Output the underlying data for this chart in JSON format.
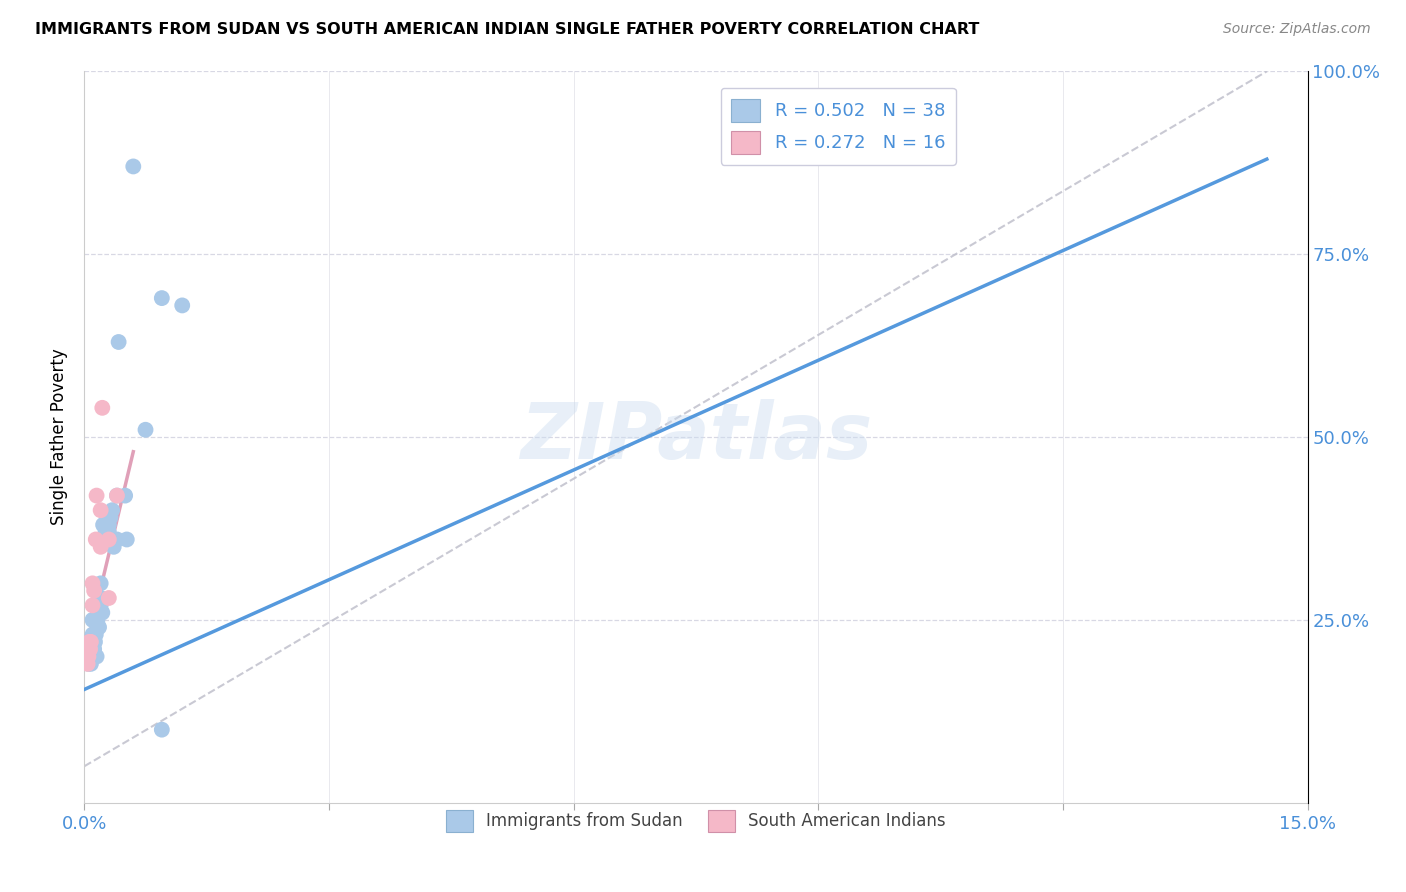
{
  "title": "IMMIGRANTS FROM SUDAN VS SOUTH AMERICAN INDIAN SINGLE FATHER POVERTY CORRELATION CHART",
  "source": "Source: ZipAtlas.com",
  "ylabel_label": "Single Father Poverty",
  "xlim": [
    0.0,
    0.15
  ],
  "ylim": [
    0.0,
    1.0
  ],
  "xtick_positions": [
    0.0,
    0.03,
    0.06,
    0.09,
    0.12,
    0.15
  ],
  "xtick_labels": [
    "0.0%",
    "",
    "",
    "",
    "",
    "15.0%"
  ],
  "ytick_positions": [
    0.0,
    0.25,
    0.5,
    0.75,
    1.0
  ],
  "ytick_labels": [
    "",
    "25.0%",
    "50.0%",
    "75.0%",
    "100.0%"
  ],
  "blue_color": "#aac9e8",
  "pink_color": "#f5b8c8",
  "blue_line_color": "#5599dd",
  "pink_line_color": "#e0a0b8",
  "dashed_line_color": "#c0c0cc",
  "watermark": "ZIPatlas",
  "sudan_x": [
    0.0004,
    0.0005,
    0.0006,
    0.0007,
    0.0008,
    0.0009,
    0.001,
    0.001,
    0.001,
    0.0012,
    0.0013,
    0.0014,
    0.0015,
    0.0016,
    0.0017,
    0.0018,
    0.002,
    0.002,
    0.002,
    0.0022,
    0.0023,
    0.0025,
    0.0026,
    0.003,
    0.003,
    0.0032,
    0.0034,
    0.0036,
    0.004,
    0.004,
    0.0042,
    0.005,
    0.0052,
    0.006,
    0.0075,
    0.0095,
    0.0095,
    0.012
  ],
  "sudan_y": [
    0.2,
    0.19,
    0.2,
    0.21,
    0.19,
    0.21,
    0.22,
    0.23,
    0.25,
    0.21,
    0.22,
    0.23,
    0.2,
    0.25,
    0.26,
    0.24,
    0.28,
    0.27,
    0.3,
    0.26,
    0.38,
    0.36,
    0.37,
    0.37,
    0.38,
    0.39,
    0.4,
    0.35,
    0.42,
    0.36,
    0.63,
    0.42,
    0.36,
    0.87,
    0.51,
    0.69,
    0.1,
    0.68
  ],
  "indian_x": [
    0.0004,
    0.0005,
    0.0006,
    0.0007,
    0.0008,
    0.001,
    0.001,
    0.0012,
    0.0014,
    0.0015,
    0.002,
    0.002,
    0.0022,
    0.003,
    0.003,
    0.004
  ],
  "indian_y": [
    0.19,
    0.2,
    0.22,
    0.21,
    0.22,
    0.27,
    0.3,
    0.29,
    0.36,
    0.42,
    0.35,
    0.4,
    0.54,
    0.28,
    0.36,
    0.42
  ],
  "blue_trendline_x": [
    0.0,
    0.145
  ],
  "blue_trendline_y": [
    0.155,
    0.88
  ],
  "pink_trendline_x": [
    0.0,
    0.006
  ],
  "pink_trendline_y": [
    0.2,
    0.48
  ],
  "dashed_line_x": [
    0.0,
    0.145
  ],
  "dashed_line_y": [
    0.05,
    1.0
  ]
}
